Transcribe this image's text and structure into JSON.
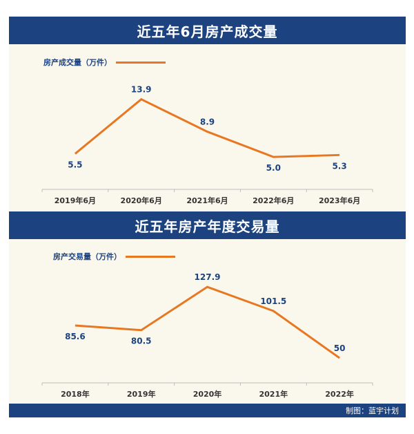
{
  "colors": {
    "banner": "#1c4380",
    "line": "#e87722",
    "label": "#1c4380",
    "panel": "#faf7ec",
    "axis": "#bdbdbd"
  },
  "chart_data": [
    {
      "type": "line",
      "title": "近五年6月房产成交量",
      "legend": "房产成交量（万件）",
      "categories": [
        "2019年6月",
        "2020年6月",
        "2021年6月",
        "2022年6月",
        "2023年6月"
      ],
      "values": [
        5.5,
        13.9,
        8.9,
        5.0,
        5.3
      ],
      "labels": [
        "5.5",
        "13.9",
        "8.9",
        "5.0",
        "5.3"
      ],
      "ylim": [
        0,
        16
      ],
      "grid": false
    },
    {
      "type": "line",
      "title": "近五年房产年度交易量",
      "legend": "房产交易量（万件）",
      "categories": [
        "2018年",
        "2019年",
        "2020年",
        "2021年",
        "2022年"
      ],
      "values": [
        85.6,
        80.5,
        127.9,
        101.5,
        50
      ],
      "labels": [
        "85.6",
        "80.5",
        "127.9",
        "101.5",
        "50"
      ],
      "ylim": [
        0,
        150
      ],
      "grid": false
    }
  ],
  "footer": {
    "credit": "制图：蓝宇计划"
  }
}
